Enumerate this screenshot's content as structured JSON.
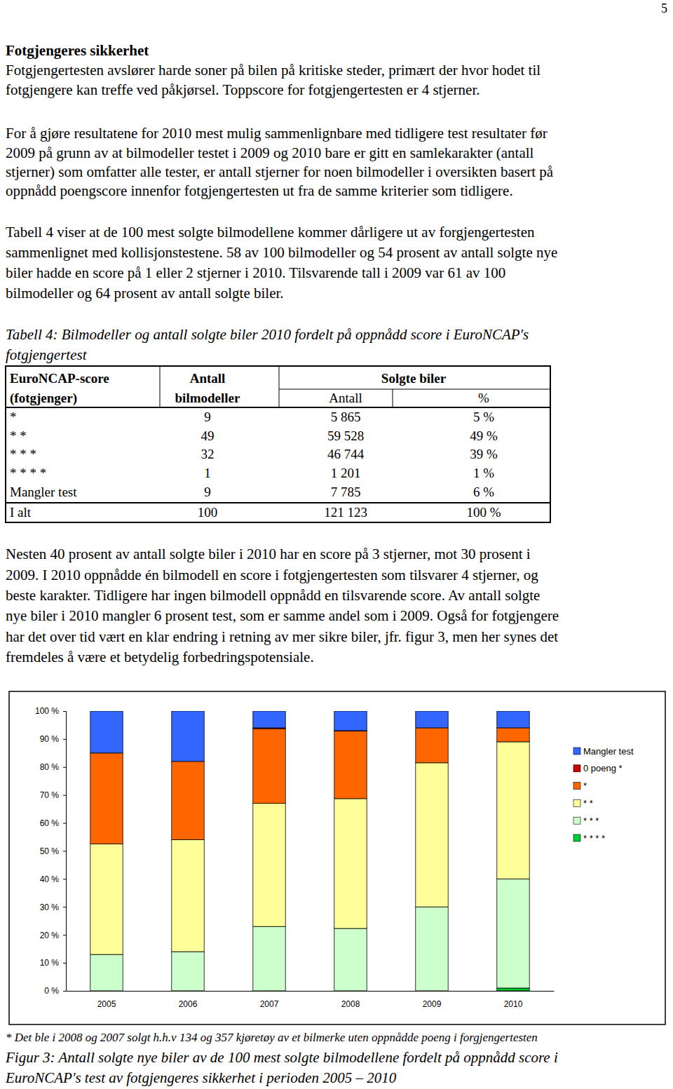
{
  "page_number": "5",
  "heading": "Fotgjengeres sikkerhet",
  "paragraphs": [
    [
      "Fotgjengertesten avslører harde soner på bilen på kritiske steder, primært der hvor hodet til",
      "fotgjengere kan treffe ved påkjørsel. Toppscore for fotgjengertesten er 4 stjerner."
    ],
    [
      "For å gjøre resultatene for 2010 mest mulig sammenlignbare med tidligere test resultater før",
      "2009 på grunn av at bilmodeller testet i 2009 og 2010 bare er gitt en samlekarakter (antall",
      "stjerner) som omfatter alle tester, er antall stjerner for noen bilmodeller i oversikten basert på",
      "oppnådd poengscore innenfor fotgjengertesten ut fra de samme kriterier som tidligere."
    ],
    [
      "Tabell 4 viser at de 100 mest solgte bilmodellene kommer dårligere ut av forgjengertesten",
      "sammenlignet med kollisjonstestene. 58 av 100 bilmodeller og 54 prosent av antall solgte nye",
      "biler hadde en score på 1 eller 2 stjerner i 2010. Tilsvarende tall i 2009 var 61 av 100",
      "bilmodeller og 64 prosent av antall solgte biler."
    ],
    [
      "Nesten 40 prosent av antall solgte biler i 2010 har en score på 3 stjerner, mot 30 prosent i",
      "2009. I 2010 oppnådde én bilmodell en score i fotgjengertesten som tilsvarer 4 stjerner, og",
      "beste karakter. Tidligere har ingen bilmodell oppnådd en tilsvarende score. Av antall solgte",
      "nye biler i 2010 mangler 6 prosent test, som er samme andel som i 2009. Også for fotgjengere",
      "har det over tid vært en klar endring i retning av mer sikre biler, jfr. figur 3, men her synes det",
      "fremdeles å være et betydelig forbedringspotensiale."
    ]
  ],
  "table_caption": [
    "Tabell 4: Bilmodeller og antall solgte biler 2010 fordelt på oppnådd score i EuroNCAP's",
    "fotgjengertest"
  ],
  "table": {
    "header": [
      [
        "EuroNCAP-score",
        "Antall",
        "Solgte biler"
      ],
      [
        "(fotgjenger)",
        "bilmodeller",
        "Antall",
        "%"
      ]
    ],
    "rows": [
      [
        "*",
        "9",
        "5 865",
        "5 %"
      ],
      [
        "* *",
        "49",
        "59 528",
        "49 %"
      ],
      [
        "* * *",
        "32",
        "46 744",
        "39 %"
      ],
      [
        "* * * *",
        "1",
        "1 201",
        "1 %"
      ],
      [
        "Mangler test",
        "9",
        "7 785",
        "6 %"
      ]
    ],
    "total": [
      "I alt",
      "100",
      "121 123",
      "100 %"
    ]
  },
  "chart_data": {
    "type": "bar",
    "stacked": true,
    "grid": false,
    "legend": "right",
    "categories": [
      "2005",
      "2006",
      "2007",
      "2008",
      "2009",
      "2010"
    ],
    "series": [
      {
        "name": "* * * *",
        "color": "#00cc33",
        "values": [
          0,
          0,
          0,
          0,
          0,
          1
        ]
      },
      {
        "name": "* * *",
        "color": "#ccffcc",
        "values": [
          13,
          14,
          23,
          22.3,
          30,
          39
        ]
      },
      {
        "name": "* *",
        "color": "#ffff99",
        "values": [
          39.5,
          40,
          44,
          46.4,
          51.5,
          49
        ]
      },
      {
        "name": "*",
        "color": "#ff6600",
        "values": [
          32.5,
          28,
          26.7,
          24.2,
          12.5,
          5
        ]
      },
      {
        "name": "0 poeng *",
        "color": "#cc0000",
        "values": [
          0,
          0,
          0.3,
          0.1,
          0,
          0
        ]
      },
      {
        "name": "Mangler test",
        "color": "#3366ff",
        "values": [
          15,
          18,
          6,
          7,
          6,
          6
        ]
      }
    ],
    "ylim": [
      0,
      100
    ],
    "yticks": [
      {
        "value": 0,
        "label": "0 %"
      },
      {
        "value": 10,
        "label": "10 %"
      },
      {
        "value": 20,
        "label": "20 %"
      },
      {
        "value": 30,
        "label": "30 %"
      },
      {
        "value": 40,
        "label": "40 %"
      },
      {
        "value": 50,
        "label": "50 %"
      },
      {
        "value": 60,
        "label": "60 %"
      },
      {
        "value": 70,
        "label": "70 %"
      },
      {
        "value": 80,
        "label": "80 %"
      },
      {
        "value": 90,
        "label": "90 %"
      },
      {
        "value": 100,
        "label": "100 %"
      }
    ]
  },
  "footnote": "* Det ble i 2008 og 2007 solgt h.h.v 134 og 357 kjøretøy av et bilmerke uten oppnådde poeng i forgjengertesten",
  "figure_caption": [
    "Figur 3: Antall solgte nye biler av de 100 mest solgte bilmodellene fordelt på oppnådd score i",
    "EuroNCAP's test av fotgjengeres sikkerhet i perioden 2005 – 2010"
  ]
}
